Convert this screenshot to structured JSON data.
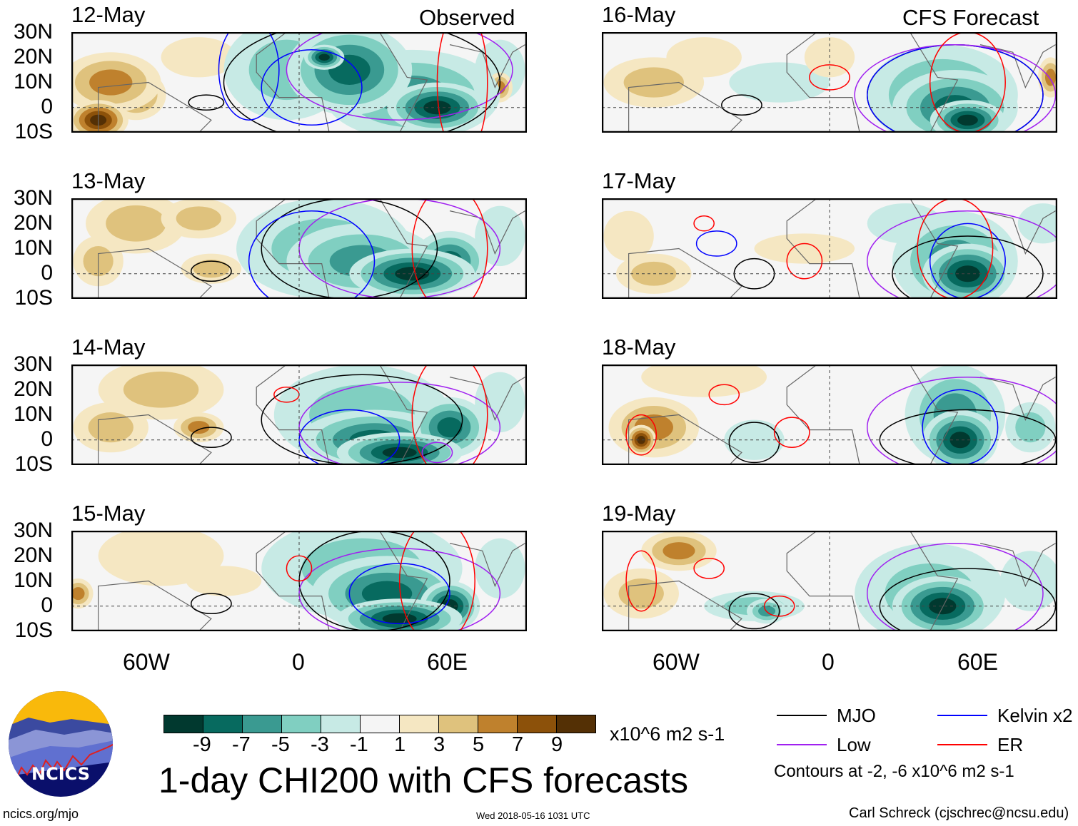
{
  "headers": {
    "left": "Observed",
    "right": "CFS Forecast"
  },
  "lat_labels": [
    "30N",
    "20N",
    "10N",
    "0",
    "10S"
  ],
  "lon_labels": [
    "60W",
    "0",
    "60E"
  ],
  "colorbar": {
    "ticks": [
      "-9",
      "-7",
      "-5",
      "-3",
      "-1",
      "1",
      "3",
      "5",
      "7",
      "9"
    ],
    "colors": [
      "#01392f",
      "#076a5f",
      "#3a9a91",
      "#80cfc1",
      "#c7eae5",
      "#f5f5f5",
      "#f5e7c2",
      "#dfc27d",
      "#bf812d",
      "#8c510a",
      "#543005"
    ],
    "units": "x10^6 m2 s-1"
  },
  "title": "1-day CHI200 with CFS forecasts",
  "legend": {
    "items": [
      {
        "label": "MJO",
        "color": "#000000"
      },
      {
        "label": "Kelvin x2",
        "color": "#0000ff"
      },
      {
        "label": "Low",
        "color": "#a020f0"
      },
      {
        "label": "ER",
        "color": "#ff0000"
      }
    ],
    "note": "Contours at -2, -6 x10^6 m2 s-1"
  },
  "footer": {
    "site": "ncics.org/mjo",
    "timestamp": "Wed 2018-05-16 1031 UTC",
    "author": "Carl Schreck (cjschrec@ncsu.edu)"
  },
  "logo_text": "NCICS",
  "chart_data": {
    "type": "heatmap",
    "variable": "CHI200 anomaly",
    "lon_range": [
      -90,
      90
    ],
    "lat_range": [
      -10,
      30
    ],
    "panels": [
      {
        "date": "12-May",
        "kind": "observed",
        "field": [
          [
            -75,
            10,
            20,
            12,
            6
          ],
          [
            -80,
            -5,
            12,
            8,
            9
          ],
          [
            -65,
            5,
            12,
            10,
            5
          ],
          [
            -40,
            20,
            15,
            8,
            2
          ],
          [
            -5,
            15,
            25,
            20,
            -3
          ],
          [
            20,
            15,
            25,
            18,
            -7
          ],
          [
            10,
            20,
            8,
            5,
            -10
          ],
          [
            45,
            5,
            35,
            18,
            -6
          ],
          [
            55,
            0,
            20,
            10,
            -9
          ],
          [
            80,
            15,
            10,
            12,
            -2
          ],
          [
            80,
            8,
            5,
            6,
            5
          ]
        ],
        "contours": [
          [
            "mjo",
            -37,
            2,
            7,
            3
          ],
          [
            "mjo",
            25,
            10,
            55,
            25
          ],
          [
            "kelvin",
            5,
            8,
            20,
            15
          ],
          [
            "kelvin",
            -20,
            15,
            12,
            20
          ],
          [
            "low",
            40,
            15,
            45,
            20
          ],
          [
            "er",
            65,
            10,
            10,
            30
          ]
        ]
      },
      {
        "date": "13-May",
        "kind": "observed",
        "field": [
          [
            -65,
            20,
            20,
            12,
            3
          ],
          [
            -40,
            22,
            15,
            8,
            3
          ],
          [
            -35,
            2,
            12,
            6,
            4
          ],
          [
            -80,
            5,
            10,
            10,
            3
          ],
          [
            10,
            10,
            35,
            20,
            -4
          ],
          [
            25,
            5,
            30,
            15,
            -6
          ],
          [
            45,
            0,
            25,
            10,
            -9
          ],
          [
            60,
            5,
            15,
            12,
            -8
          ],
          [
            80,
            15,
            10,
            12,
            -2
          ]
        ],
        "contours": [
          [
            "mjo",
            -35,
            1,
            8,
            4
          ],
          [
            "mjo",
            20,
            10,
            35,
            20
          ],
          [
            "kelvin",
            5,
            5,
            25,
            20
          ],
          [
            "low",
            40,
            10,
            40,
            20
          ],
          [
            "er",
            60,
            10,
            15,
            25
          ]
        ]
      },
      {
        "date": "14-May",
        "kind": "observed",
        "field": [
          [
            -55,
            20,
            25,
            12,
            3
          ],
          [
            -40,
            5,
            10,
            6,
            5
          ],
          [
            -75,
            5,
            15,
            10,
            3
          ],
          [
            25,
            10,
            35,
            20,
            -4
          ],
          [
            30,
            0,
            30,
            12,
            -7
          ],
          [
            40,
            -5,
            25,
            8,
            -10
          ],
          [
            60,
            5,
            15,
            12,
            -8
          ],
          [
            80,
            15,
            10,
            12,
            -2
          ]
        ],
        "contours": [
          [
            "mjo",
            -35,
            1,
            8,
            4
          ],
          [
            "mjo",
            25,
            8,
            40,
            18
          ],
          [
            "kelvin",
            20,
            0,
            20,
            12
          ],
          [
            "low",
            40,
            5,
            40,
            18
          ],
          [
            "er",
            -5,
            18,
            5,
            3
          ],
          [
            "er",
            60,
            10,
            15,
            25
          ],
          [
            "low",
            55,
            -5,
            6,
            4
          ]
        ]
      },
      {
        "date": "15-May",
        "kind": "observed",
        "field": [
          [
            -55,
            20,
            25,
            12,
            2
          ],
          [
            -88,
            5,
            6,
            6,
            5
          ],
          [
            -30,
            10,
            15,
            6,
            2
          ],
          [
            25,
            15,
            40,
            20,
            -4
          ],
          [
            35,
            5,
            30,
            15,
            -7
          ],
          [
            40,
            -5,
            25,
            8,
            -10
          ],
          [
            60,
            0,
            12,
            10,
            -9
          ],
          [
            80,
            15,
            10,
            12,
            -2
          ]
        ],
        "contours": [
          [
            "mjo",
            -35,
            1,
            8,
            4
          ],
          [
            "mjo",
            30,
            10,
            30,
            20
          ],
          [
            "kelvin",
            40,
            5,
            20,
            12
          ],
          [
            "low",
            40,
            5,
            40,
            18
          ],
          [
            "er",
            0,
            15,
            5,
            5
          ],
          [
            "er",
            55,
            10,
            15,
            25
          ]
        ]
      },
      {
        "date": "16-May",
        "kind": "forecast",
        "field": [
          [
            -70,
            10,
            20,
            10,
            3
          ],
          [
            -50,
            20,
            15,
            8,
            2
          ],
          [
            -20,
            10,
            20,
            8,
            -2
          ],
          [
            0,
            20,
            10,
            8,
            2
          ],
          [
            45,
            5,
            30,
            20,
            -5
          ],
          [
            50,
            0,
            25,
            15,
            -8
          ],
          [
            55,
            -5,
            15,
            8,
            -10
          ],
          [
            88,
            12,
            5,
            8,
            6
          ]
        ],
        "contours": [
          [
            "mjo",
            -35,
            1,
            8,
            4
          ],
          [
            "mjo",
            50,
            5,
            35,
            20
          ],
          [
            "kelvin",
            50,
            5,
            35,
            20
          ],
          [
            "low",
            50,
            5,
            40,
            20
          ],
          [
            "er",
            0,
            12,
            8,
            5
          ],
          [
            "er",
            55,
            10,
            15,
            20
          ]
        ]
      },
      {
        "date": "17-May",
        "kind": "forecast",
        "field": [
          [
            -70,
            0,
            15,
            8,
            4
          ],
          [
            -80,
            15,
            10,
            10,
            2
          ],
          [
            -10,
            10,
            20,
            6,
            2
          ],
          [
            30,
            20,
            15,
            8,
            -2
          ],
          [
            50,
            5,
            25,
            20,
            -6
          ],
          [
            55,
            0,
            18,
            12,
            -9
          ],
          [
            85,
            20,
            10,
            8,
            -2
          ]
        ],
        "contours": [
          [
            "mjo",
            -30,
            0,
            8,
            6
          ],
          [
            "mjo",
            55,
            0,
            30,
            15
          ],
          [
            "kelvin",
            -45,
            12,
            8,
            5
          ],
          [
            "kelvin",
            55,
            5,
            15,
            15
          ],
          [
            "low",
            55,
            5,
            40,
            20
          ],
          [
            "er",
            -10,
            5,
            7,
            7
          ],
          [
            "er",
            50,
            10,
            15,
            20
          ],
          [
            "er",
            -50,
            20,
            4,
            3
          ]
        ]
      },
      {
        "date": "18-May",
        "kind": "forecast",
        "field": [
          [
            -70,
            5,
            18,
            12,
            6
          ],
          [
            -75,
            0,
            6,
            6,
            9
          ],
          [
            -50,
            25,
            25,
            8,
            2
          ],
          [
            -30,
            0,
            12,
            8,
            -2
          ],
          [
            50,
            10,
            20,
            20,
            -5
          ],
          [
            52,
            0,
            15,
            12,
            -9
          ],
          [
            80,
            5,
            10,
            10,
            -3
          ]
        ],
        "contours": [
          [
            "mjo",
            -30,
            -1,
            10,
            8
          ],
          [
            "mjo",
            55,
            0,
            35,
            12
          ],
          [
            "kelvin",
            52,
            5,
            15,
            15
          ],
          [
            "low",
            55,
            5,
            40,
            20
          ],
          [
            "er",
            -15,
            3,
            7,
            6
          ],
          [
            "er",
            -42,
            18,
            6,
            4
          ],
          [
            "er",
            -75,
            2,
            6,
            8
          ]
        ]
      },
      {
        "date": "19-May",
        "kind": "forecast",
        "field": [
          [
            -60,
            22,
            15,
            8,
            5
          ],
          [
            -75,
            5,
            15,
            10,
            3
          ],
          [
            -30,
            0,
            20,
            6,
            -4
          ],
          [
            -25,
            -2,
            8,
            5,
            -6
          ],
          [
            40,
            5,
            30,
            20,
            -4
          ],
          [
            45,
            0,
            20,
            12,
            -9
          ],
          [
            80,
            10,
            12,
            12,
            -2
          ]
        ],
        "contours": [
          [
            "mjo",
            -30,
            -2,
            10,
            7
          ],
          [
            "mjo",
            55,
            0,
            35,
            15
          ],
          [
            "low",
            50,
            5,
            35,
            20
          ],
          [
            "er",
            -20,
            0,
            6,
            4
          ],
          [
            "er",
            -48,
            15,
            6,
            4
          ],
          [
            "er",
            -75,
            10,
            6,
            12
          ]
        ]
      }
    ]
  }
}
